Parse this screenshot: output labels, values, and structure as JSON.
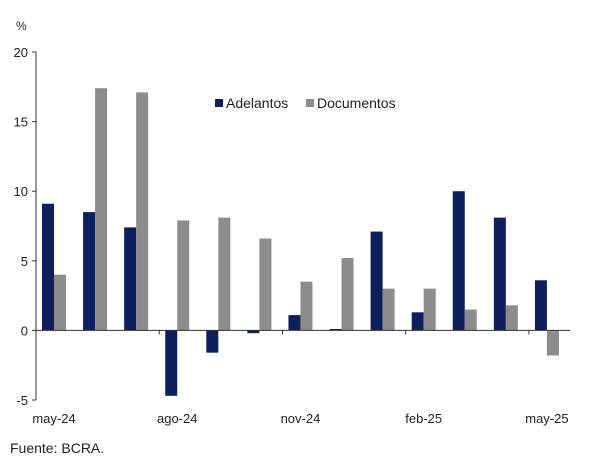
{
  "chart_data": {
    "type": "bar",
    "unit_label": "%",
    "categories": [
      "may-24",
      "jun-24",
      "jul-24",
      "ago-24",
      "sep-24",
      "oct-24",
      "nov-24",
      "dic-24",
      "ene-25",
      "feb-25",
      "mar-25",
      "abr-25",
      "may-25"
    ],
    "x_tick_labels": [
      "may-24",
      "ago-24",
      "nov-24",
      "feb-25",
      "may-25"
    ],
    "series": [
      {
        "name": "Adelantos",
        "color": "#0d1f5c",
        "values": [
          9.1,
          8.5,
          7.4,
          -4.7,
          -1.6,
          -0.2,
          1.1,
          0.1,
          7.1,
          1.3,
          10.0,
          8.1,
          3.6
        ]
      },
      {
        "name": "Documentos",
        "color": "#8c8c8c",
        "values": [
          4.0,
          17.4,
          17.1,
          7.9,
          8.1,
          6.6,
          3.5,
          5.2,
          3.0,
          3.0,
          1.5,
          1.8,
          -1.8
        ]
      }
    ],
    "y_ticks": [
      "-5",
      "0",
      "5",
      "10",
      "15",
      "20"
    ],
    "ylim": [
      -5,
      20
    ],
    "grid": false,
    "legend_position": "top-center"
  },
  "source": "Fuente: BCRA."
}
